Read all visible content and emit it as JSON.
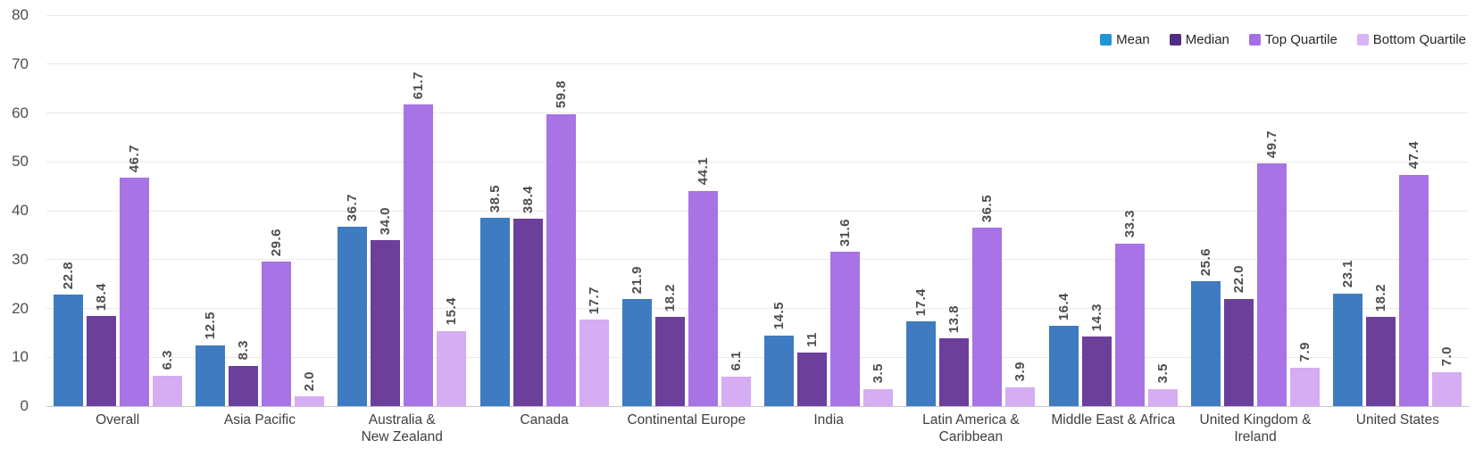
{
  "chart_data": {
    "type": "bar",
    "title": "",
    "categories": [
      "Overall",
      "Asia Pacific",
      "Australia &\nNew Zealand",
      "Canada",
      "Continental Europe",
      "India",
      "Latin America &\nCaribbean",
      "Middle East & Africa",
      "United Kingdom &\nIreland",
      "United States"
    ],
    "series": [
      {
        "name": "Mean",
        "bar_color": "#3f7bc0",
        "legend_color": "#1e96d5",
        "values": [
          22.8,
          12.5,
          36.7,
          38.5,
          21.9,
          14.5,
          17.4,
          16.4,
          25.6,
          23.1
        ],
        "labels": [
          "22.8",
          "12.5",
          "36.7",
          "38.5",
          "21.9",
          "14.5",
          "17.4",
          "16.4",
          "25.6",
          "23.1"
        ]
      },
      {
        "name": "Median",
        "bar_color": "#6c3f9b",
        "legend_color": "#502d87",
        "values": [
          18.4,
          8.3,
          34.0,
          38.4,
          18.2,
          11,
          13.8,
          14.3,
          22.0,
          18.2
        ],
        "labels": [
          "18.4",
          "8.3",
          "34.0",
          "38.4",
          "18.2",
          "11",
          "13.8",
          "14.3",
          "22.0",
          "18.2"
        ]
      },
      {
        "name": "Top Quartile",
        "bar_color": "#a873e4",
        "legend_color": "#a56ee9",
        "values": [
          46.7,
          29.6,
          61.7,
          59.8,
          44.1,
          31.6,
          36.5,
          33.3,
          49.7,
          47.4
        ],
        "labels": [
          "46.7",
          "29.6",
          "61.7",
          "59.8",
          "44.1",
          "31.6",
          "36.5",
          "33.3",
          "49.7",
          "47.4"
        ]
      },
      {
        "name": "Bottom Quartile",
        "bar_color": "#d6acf2",
        "legend_color": "#dab2f6",
        "values": [
          6.3,
          2.0,
          15.4,
          17.7,
          6.1,
          3.5,
          3.9,
          3.5,
          7.9,
          7.0
        ],
        "labels": [
          "6.3",
          "2.0",
          "15.4",
          "17.7",
          "6.1",
          "3.5",
          "3.9",
          "3.5",
          "7.9",
          "7.0"
        ]
      }
    ],
    "y_axis": {
      "min": 0,
      "max": 80,
      "step": 10,
      "ticks": [
        "0",
        "10",
        "20",
        "30",
        "40",
        "50",
        "60",
        "70",
        "80"
      ]
    },
    "grid": true,
    "legend_position": "top-right",
    "colors": {
      "gridline": "#eaeaea",
      "baseline": "#c8c8c8",
      "value_label": "#4d4d4d",
      "y_tick_label": "#4e4e4e",
      "x_axis_label": "#3f3f3f",
      "legend_text": "#262626",
      "background": "#ffffff"
    }
  }
}
